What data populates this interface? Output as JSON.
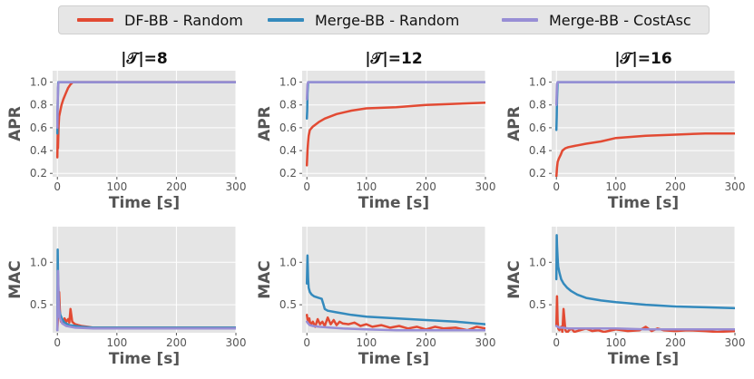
{
  "legend": {
    "entries": [
      {
        "label": "DF-BB - Random",
        "color": "#e24a33"
      },
      {
        "label": "Merge-BB - Random",
        "color": "#348abd"
      },
      {
        "label": "Merge-BB - CostAsc",
        "color": "#988ed5"
      }
    ]
  },
  "chart_data": [
    {
      "type": "line",
      "title": "|𝒯|=8",
      "xlabel": "Time [s]",
      "ylabel": "APR",
      "xlim": [
        -8,
        300
      ],
      "ylim": [
        0.17,
        1.1
      ],
      "xticks": [
        0,
        100,
        200,
        300
      ],
      "yticks": [
        0.2,
        0.4,
        0.6,
        0.8,
        1.0
      ],
      "xticklabels": [
        "0",
        "100",
        "200",
        "300"
      ],
      "yticklabels": [
        "0.2",
        "0.4",
        "0.6",
        "0.8",
        "1.0"
      ],
      "series": [
        {
          "name": "DF-BB - Random",
          "color": "#e24a33",
          "x": [
            0,
            0.5,
            1,
            2,
            3,
            5,
            7,
            10,
            14,
            18,
            22,
            26,
            30,
            300
          ],
          "y": [
            0.34,
            0.55,
            0.42,
            0.62,
            0.7,
            0.75,
            0.8,
            0.85,
            0.9,
            0.95,
            0.98,
            1.0,
            1.0,
            1.0
          ]
        },
        {
          "name": "Merge-BB - Random",
          "color": "#348abd",
          "x": [
            0,
            0.3,
            1,
            1.5,
            2,
            300
          ],
          "y": [
            0.55,
            0.75,
            0.9,
            1.0,
            1.0,
            1.0
          ]
        },
        {
          "name": "Merge-BB - CostAsc",
          "color": "#988ed5",
          "x": [
            0,
            1,
            2,
            300
          ],
          "y": [
            0.6,
            0.95,
            1.0,
            1.0
          ]
        }
      ]
    },
    {
      "type": "line",
      "title": "|𝒯|=12",
      "xlabel": "Time [s]",
      "ylabel": "APR",
      "xlim": [
        -8,
        300
      ],
      "ylim": [
        0.17,
        1.1
      ],
      "xticks": [
        0,
        100,
        200,
        300
      ],
      "yticks": [
        0.2,
        0.4,
        0.6,
        0.8,
        1.0
      ],
      "xticklabels": [
        "0",
        "100",
        "200",
        "300"
      ],
      "yticklabels": [
        "0.2",
        "0.4",
        "0.6",
        "0.8",
        "1.0"
      ],
      "series": [
        {
          "name": "DF-BB - Random",
          "color": "#e24a33",
          "x": [
            0,
            1,
            2,
            3,
            5,
            10,
            20,
            30,
            50,
            75,
            100,
            150,
            200,
            250,
            300
          ],
          "y": [
            0.27,
            0.4,
            0.48,
            0.53,
            0.58,
            0.61,
            0.65,
            0.68,
            0.72,
            0.75,
            0.77,
            0.78,
            0.8,
            0.81,
            0.82
          ]
        },
        {
          "name": "Merge-BB - Random",
          "color": "#348abd",
          "x": [
            0,
            0.5,
            1,
            2,
            3,
            300
          ],
          "y": [
            0.68,
            0.75,
            0.9,
            1.0,
            1.0,
            1.0
          ]
        },
        {
          "name": "Merge-BB - CostAsc",
          "color": "#988ed5",
          "x": [
            0,
            1,
            2,
            300
          ],
          "y": [
            0.85,
            0.98,
            1.0,
            1.0
          ]
        }
      ]
    },
    {
      "type": "line",
      "title": "|𝒯|=16",
      "xlabel": "Time [s]",
      "ylabel": "APR",
      "xlim": [
        -8,
        300
      ],
      "ylim": [
        0.17,
        1.1
      ],
      "xticks": [
        0,
        100,
        200,
        300
      ],
      "yticks": [
        0.2,
        0.4,
        0.6,
        0.8,
        1.0
      ],
      "xticklabels": [
        "0",
        "100",
        "200",
        "300"
      ],
      "yticklabels": [
        "0.2",
        "0.4",
        "0.6",
        "0.8",
        "1.0"
      ],
      "series": [
        {
          "name": "DF-BB - Random",
          "color": "#e24a33",
          "x": [
            0,
            1,
            2,
            4,
            7,
            10,
            15,
            20,
            30,
            50,
            75,
            100,
            150,
            200,
            250,
            300
          ],
          "y": [
            0.17,
            0.25,
            0.3,
            0.33,
            0.36,
            0.4,
            0.42,
            0.43,
            0.44,
            0.46,
            0.48,
            0.51,
            0.53,
            0.54,
            0.55,
            0.55
          ]
        },
        {
          "name": "Merge-BB - Random",
          "color": "#348abd",
          "x": [
            0,
            0.5,
            1,
            2,
            3,
            300
          ],
          "y": [
            0.58,
            0.7,
            0.85,
            1.0,
            1.0,
            1.0
          ]
        },
        {
          "name": "Merge-BB - CostAsc",
          "color": "#988ed5",
          "x": [
            0,
            1,
            2,
            300
          ],
          "y": [
            0.8,
            0.98,
            1.0,
            1.0
          ]
        }
      ]
    },
    {
      "type": "line",
      "title": "",
      "xlabel": "Time [s]",
      "ylabel": "MAC",
      "xlim": [
        -8,
        300
      ],
      "ylim": [
        0.17,
        1.42
      ],
      "xticks": [
        0,
        100,
        200,
        300
      ],
      "yticks": [
        0.5,
        1.0
      ],
      "xticklabels": [
        "0",
        "100",
        "200",
        "300"
      ],
      "yticklabels": [
        "0.5",
        "1.0"
      ],
      "series": [
        {
          "name": "DF-BB - Random",
          "color": "#e24a33",
          "x": [
            0,
            1,
            2,
            3,
            4,
            5,
            6,
            8,
            10,
            12,
            15,
            18,
            20,
            22,
            25,
            28,
            30,
            35,
            40,
            50,
            60,
            80,
            100,
            300
          ],
          "y": [
            0.2,
            0.35,
            0.5,
            0.65,
            0.45,
            0.35,
            0.3,
            0.32,
            0.28,
            0.34,
            0.3,
            0.33,
            0.29,
            0.45,
            0.3,
            0.28,
            0.27,
            0.26,
            0.25,
            0.24,
            0.23,
            0.23,
            0.23,
            0.23
          ]
        },
        {
          "name": "Merge-BB - Random",
          "color": "#348abd",
          "x": [
            0,
            0.5,
            1,
            2,
            3,
            5,
            8,
            12,
            20,
            40,
            60,
            100,
            300
          ],
          "y": [
            0.2,
            1.15,
            0.9,
            0.6,
            0.45,
            0.38,
            0.33,
            0.29,
            0.26,
            0.24,
            0.23,
            0.23,
            0.23
          ]
        },
        {
          "name": "Merge-BB - CostAsc",
          "color": "#988ed5",
          "x": [
            0,
            1,
            2,
            4,
            8,
            15,
            30,
            60,
            300
          ],
          "y": [
            0.2,
            0.9,
            0.55,
            0.35,
            0.28,
            0.25,
            0.23,
            0.22,
            0.22
          ]
        }
      ]
    },
    {
      "type": "line",
      "title": "",
      "xlabel": "Time [s]",
      "ylabel": "MAC",
      "xlim": [
        -8,
        300
      ],
      "ylim": [
        0.17,
        1.42
      ],
      "xticks": [
        0,
        100,
        200,
        300
      ],
      "yticks": [
        0.5,
        1.0
      ],
      "xticklabels": [
        "0",
        "100",
        "200",
        "300"
      ],
      "yticklabels": [
        "0.5",
        "1.0"
      ],
      "series": [
        {
          "name": "DF-BB - Random",
          "color": "#e24a33",
          "x": [
            0,
            2,
            4,
            6,
            10,
            14,
            18,
            22,
            26,
            30,
            35,
            40,
            45,
            50,
            55,
            60,
            70,
            80,
            90,
            100,
            110,
            125,
            140,
            155,
            170,
            185,
            200,
            215,
            230,
            250,
            270,
            285,
            300
          ],
          "y": [
            0.38,
            0.28,
            0.34,
            0.26,
            0.3,
            0.24,
            0.33,
            0.27,
            0.3,
            0.25,
            0.35,
            0.27,
            0.32,
            0.26,
            0.3,
            0.28,
            0.27,
            0.29,
            0.25,
            0.27,
            0.24,
            0.26,
            0.23,
            0.25,
            0.22,
            0.24,
            0.21,
            0.24,
            0.22,
            0.23,
            0.2,
            0.24,
            0.22
          ]
        },
        {
          "name": "Merge-BB - Random",
          "color": "#348abd",
          "x": [
            0,
            1,
            2,
            3,
            5,
            8,
            12,
            20,
            25,
            28,
            30,
            35,
            50,
            75,
            100,
            150,
            200,
            250,
            300
          ],
          "y": [
            0.75,
            1.08,
            0.8,
            0.7,
            0.65,
            0.62,
            0.6,
            0.58,
            0.57,
            0.5,
            0.45,
            0.43,
            0.41,
            0.38,
            0.36,
            0.34,
            0.32,
            0.3,
            0.27
          ]
        },
        {
          "name": "Merge-BB - CostAsc",
          "color": "#988ed5",
          "x": [
            0,
            2,
            5,
            10,
            20,
            40,
            60,
            100,
            150,
            200,
            250,
            300
          ],
          "y": [
            0.3,
            0.28,
            0.26,
            0.25,
            0.24,
            0.23,
            0.22,
            0.21,
            0.2,
            0.2,
            0.2,
            0.2
          ]
        }
      ]
    },
    {
      "type": "line",
      "title": "",
      "xlabel": "Time [s]",
      "ylabel": "MAC",
      "xlim": [
        -8,
        300
      ],
      "ylim": [
        0.17,
        1.42
      ],
      "xticks": [
        0,
        100,
        200,
        300
      ],
      "yticks": [
        0.5,
        1.0
      ],
      "xticklabels": [
        "0",
        "100",
        "200",
        "300"
      ],
      "yticklabels": [
        "0.5",
        "1.0"
      ],
      "series": [
        {
          "name": "DF-BB - Random",
          "color": "#e24a33",
          "x": [
            0,
            1,
            2,
            3,
            5,
            8,
            10,
            12,
            15,
            18,
            20,
            25,
            30,
            40,
            50,
            60,
            70,
            80,
            100,
            120,
            140,
            150,
            160,
            170,
            180,
            200,
            220,
            250,
            270,
            300
          ],
          "y": [
            0.25,
            0.6,
            0.3,
            0.22,
            0.2,
            0.24,
            0.18,
            0.45,
            0.2,
            0.17,
            0.19,
            0.22,
            0.18,
            0.2,
            0.22,
            0.19,
            0.2,
            0.18,
            0.21,
            0.19,
            0.2,
            0.24,
            0.19,
            0.22,
            0.2,
            0.19,
            0.2,
            0.19,
            0.18,
            0.19
          ]
        },
        {
          "name": "Merge-BB - Random",
          "color": "#348abd",
          "x": [
            0,
            0.5,
            1,
            2,
            3,
            5,
            8,
            12,
            18,
            25,
            35,
            50,
            75,
            100,
            150,
            200,
            250,
            300
          ],
          "y": [
            0.8,
            1.32,
            1.2,
            1.05,
            0.95,
            0.88,
            0.8,
            0.75,
            0.7,
            0.66,
            0.62,
            0.58,
            0.55,
            0.53,
            0.5,
            0.48,
            0.47,
            0.46
          ]
        },
        {
          "name": "Merge-BB - CostAsc",
          "color": "#988ed5",
          "x": [
            0,
            2,
            5,
            10,
            20,
            40,
            60,
            100,
            150,
            200,
            250,
            300
          ],
          "y": [
            0.25,
            0.24,
            0.23,
            0.23,
            0.22,
            0.22,
            0.22,
            0.22,
            0.21,
            0.21,
            0.21,
            0.21
          ]
        }
      ]
    }
  ]
}
